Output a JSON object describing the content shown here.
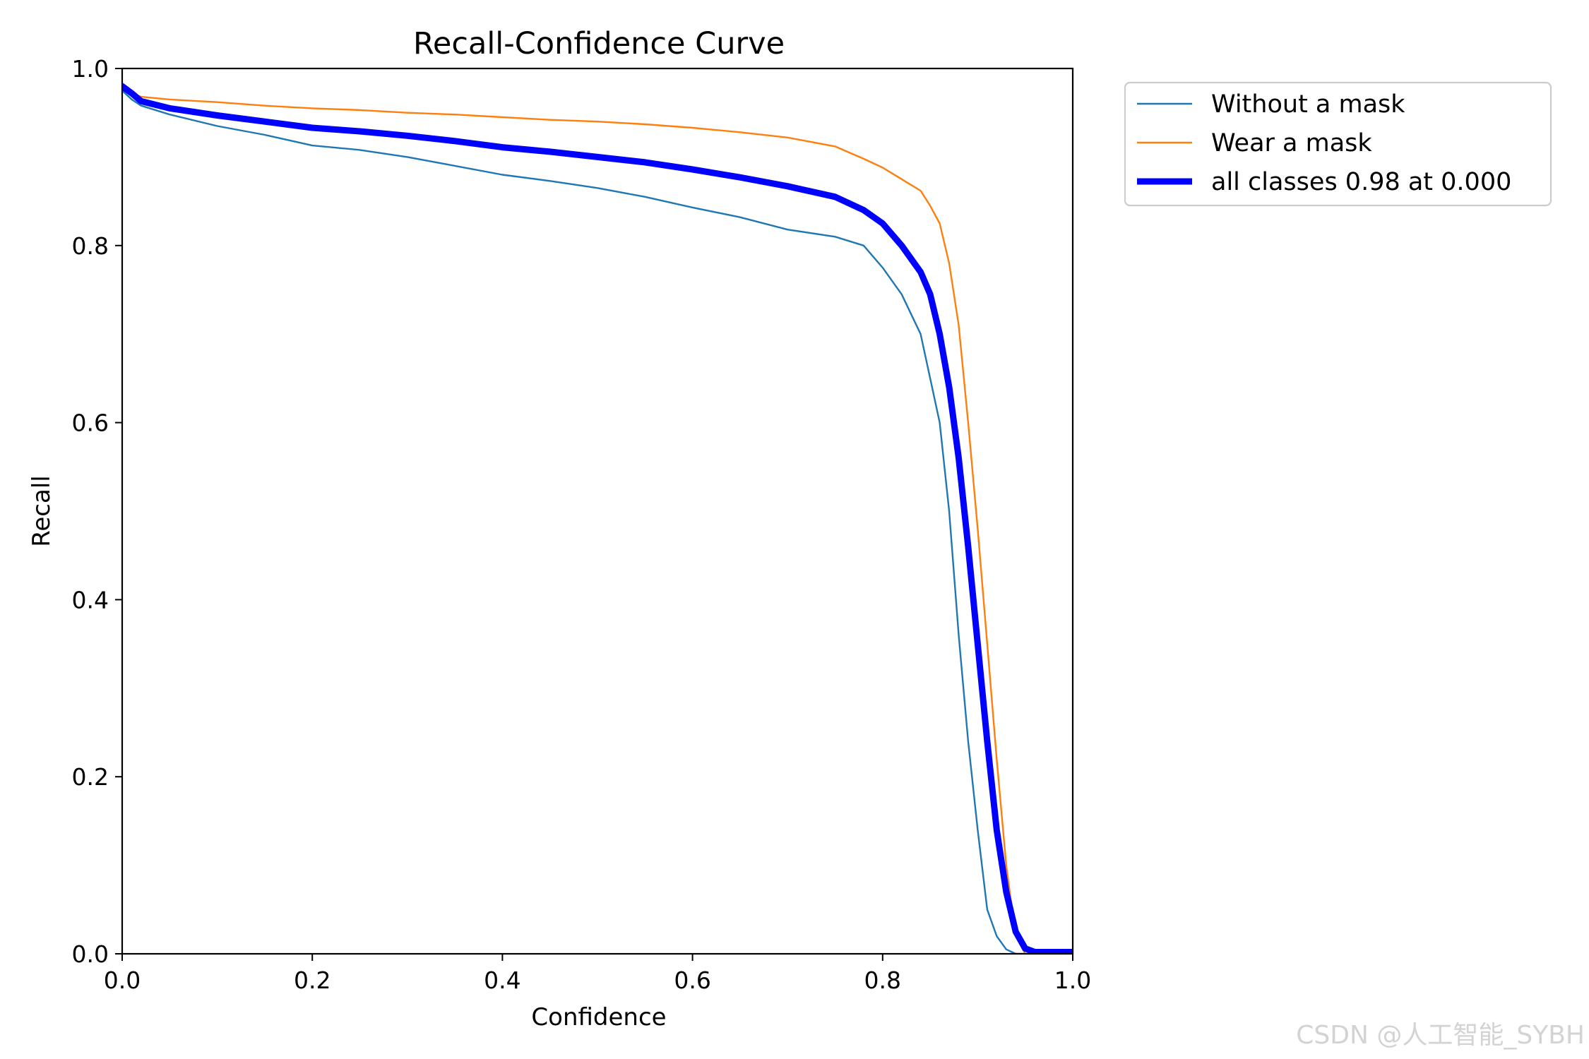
{
  "chart_data": {
    "type": "line",
    "title": "Recall-Confidence Curve",
    "xlabel": "Confidence",
    "ylabel": "Recall",
    "xlim": [
      0.0,
      1.0
    ],
    "ylim": [
      0.0,
      1.0
    ],
    "x_ticks": [
      0.0,
      0.2,
      0.4,
      0.6,
      0.8,
      1.0
    ],
    "y_ticks": [
      0.0,
      0.2,
      0.4,
      0.6,
      0.8,
      1.0
    ],
    "x_tick_labels": [
      "0.0",
      "0.2",
      "0.4",
      "0.6",
      "0.8",
      "1.0"
    ],
    "y_tick_labels": [
      "0.0",
      "0.2",
      "0.4",
      "0.6",
      "0.8",
      "1.0"
    ],
    "grid": false,
    "legend_position": "outside top-right",
    "series": [
      {
        "name": "Without a mask",
        "color": "#1f77b4",
        "width": "thin",
        "x": [
          0.0,
          0.01,
          0.02,
          0.05,
          0.1,
          0.15,
          0.2,
          0.25,
          0.3,
          0.35,
          0.4,
          0.45,
          0.5,
          0.55,
          0.6,
          0.65,
          0.7,
          0.75,
          0.78,
          0.8,
          0.82,
          0.84,
          0.85,
          0.86,
          0.87,
          0.88,
          0.89,
          0.9,
          0.91,
          0.92,
          0.93,
          0.94,
          0.95,
          1.0
        ],
        "y": [
          0.975,
          0.965,
          0.958,
          0.948,
          0.935,
          0.925,
          0.913,
          0.908,
          0.9,
          0.89,
          0.88,
          0.873,
          0.865,
          0.855,
          0.843,
          0.832,
          0.818,
          0.81,
          0.8,
          0.775,
          0.745,
          0.7,
          0.65,
          0.6,
          0.5,
          0.36,
          0.24,
          0.14,
          0.05,
          0.02,
          0.005,
          0.0,
          0.0,
          0.0
        ]
      },
      {
        "name": "Wear a mask",
        "color": "#ff7f0e",
        "width": "thin",
        "x": [
          0.0,
          0.01,
          0.02,
          0.05,
          0.1,
          0.15,
          0.2,
          0.25,
          0.3,
          0.35,
          0.4,
          0.45,
          0.5,
          0.55,
          0.6,
          0.65,
          0.7,
          0.75,
          0.78,
          0.8,
          0.82,
          0.84,
          0.85,
          0.86,
          0.87,
          0.88,
          0.89,
          0.9,
          0.91,
          0.92,
          0.93,
          0.94,
          0.95,
          0.96,
          1.0
        ],
        "y": [
          0.98,
          0.972,
          0.968,
          0.965,
          0.962,
          0.958,
          0.955,
          0.953,
          0.95,
          0.948,
          0.945,
          0.942,
          0.94,
          0.937,
          0.933,
          0.928,
          0.922,
          0.912,
          0.898,
          0.888,
          0.875,
          0.862,
          0.845,
          0.825,
          0.78,
          0.71,
          0.6,
          0.48,
          0.35,
          0.22,
          0.1,
          0.02,
          0.0,
          0.0,
          0.0
        ]
      },
      {
        "name": "all classes 0.98 at 0.000",
        "color": "#0000ff",
        "width": "thick",
        "x": [
          0.0,
          0.01,
          0.02,
          0.05,
          0.1,
          0.15,
          0.2,
          0.25,
          0.3,
          0.35,
          0.4,
          0.45,
          0.5,
          0.55,
          0.6,
          0.65,
          0.7,
          0.75,
          0.78,
          0.8,
          0.82,
          0.84,
          0.85,
          0.86,
          0.87,
          0.88,
          0.89,
          0.9,
          0.91,
          0.92,
          0.93,
          0.94,
          0.95,
          0.96,
          0.97,
          1.0
        ],
        "y": [
          0.98,
          0.972,
          0.963,
          0.955,
          0.947,
          0.94,
          0.933,
          0.929,
          0.924,
          0.918,
          0.911,
          0.906,
          0.9,
          0.894,
          0.886,
          0.877,
          0.867,
          0.855,
          0.84,
          0.825,
          0.8,
          0.77,
          0.745,
          0.7,
          0.64,
          0.56,
          0.46,
          0.35,
          0.24,
          0.14,
          0.07,
          0.025,
          0.006,
          0.002,
          0.002,
          0.002
        ]
      }
    ]
  },
  "watermark": "CSDN @人工智能_SYBH"
}
